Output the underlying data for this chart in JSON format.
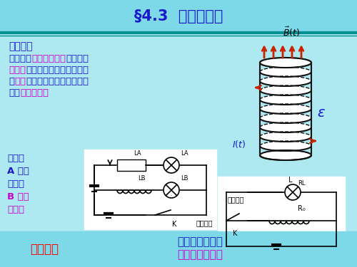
{
  "title": "§4.3  自感与互感",
  "bg_color": "#aee8f0",
  "title_bg_color": "#7dd8e8",
  "title_color": "#1a1acc",
  "header_sep_color": "#009090",
  "section1_label": "一、自感",
  "body_text_blue": "#1a1acc",
  "body_text_magenta": "#cc00cc",
  "arrow_color": "#cc2200",
  "coil_color": "#111111",
  "white_box_color": "#ffffff",
  "bottom_left_red": "典型演示",
  "bottom_mid_blue": "开关断开的瞬间",
  "bottom_mid_mg": "灯泡更亮地突闪",
  "text_left1": "通电时",
  "text_left2": "A 灯迅",
  "text_left3": "速点亮",
  "text_left4": "B 灯缓",
  "text_left5": "慢亮起",
  "circuit1_label": "通电自感",
  "circuit2_label": "断电自感"
}
